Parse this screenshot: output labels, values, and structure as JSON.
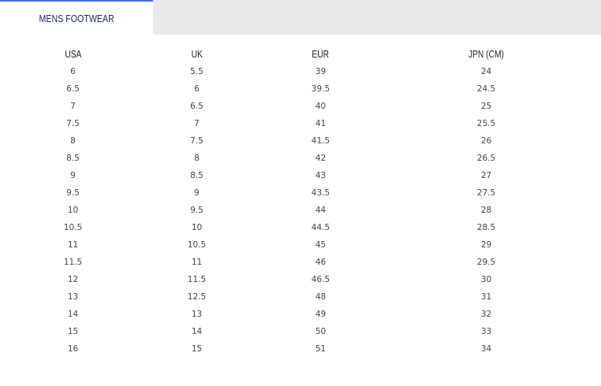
{
  "tabs": {
    "active_label": "MENS FOOTWEAR"
  },
  "colors": {
    "accent": "#4a6bd1",
    "tab_text": "#1c2657",
    "inactive_bg": "#e9e8ea"
  },
  "table": {
    "headers": [
      "USA",
      "UK",
      "EUR",
      "JPN (CM)"
    ],
    "rows": [
      [
        "6",
        "5.5",
        "39",
        "24"
      ],
      [
        "6.5",
        "6",
        "39.5",
        "24.5"
      ],
      [
        "7",
        "6.5",
        "40",
        "25"
      ],
      [
        "7.5",
        "7",
        "41",
        "25.5"
      ],
      [
        "8",
        "7.5",
        "41.5",
        "26"
      ],
      [
        "8.5",
        "8",
        "42",
        "26.5"
      ],
      [
        "9",
        "8.5",
        "43",
        "27"
      ],
      [
        "9.5",
        "9",
        "43.5",
        "27.5"
      ],
      [
        "10",
        "9.5",
        "44",
        "28"
      ],
      [
        "10.5",
        "10",
        "44.5",
        "28.5"
      ],
      [
        "11",
        "10.5",
        "45",
        "29"
      ],
      [
        "11.5",
        "11",
        "46",
        "29.5"
      ],
      [
        "12",
        "11.5",
        "46.5",
        "30"
      ],
      [
        "13",
        "12.5",
        "48",
        "31"
      ],
      [
        "14",
        "13",
        "49",
        "32"
      ],
      [
        "15",
        "14",
        "50",
        "33"
      ],
      [
        "16",
        "15",
        "51",
        "34"
      ]
    ]
  }
}
